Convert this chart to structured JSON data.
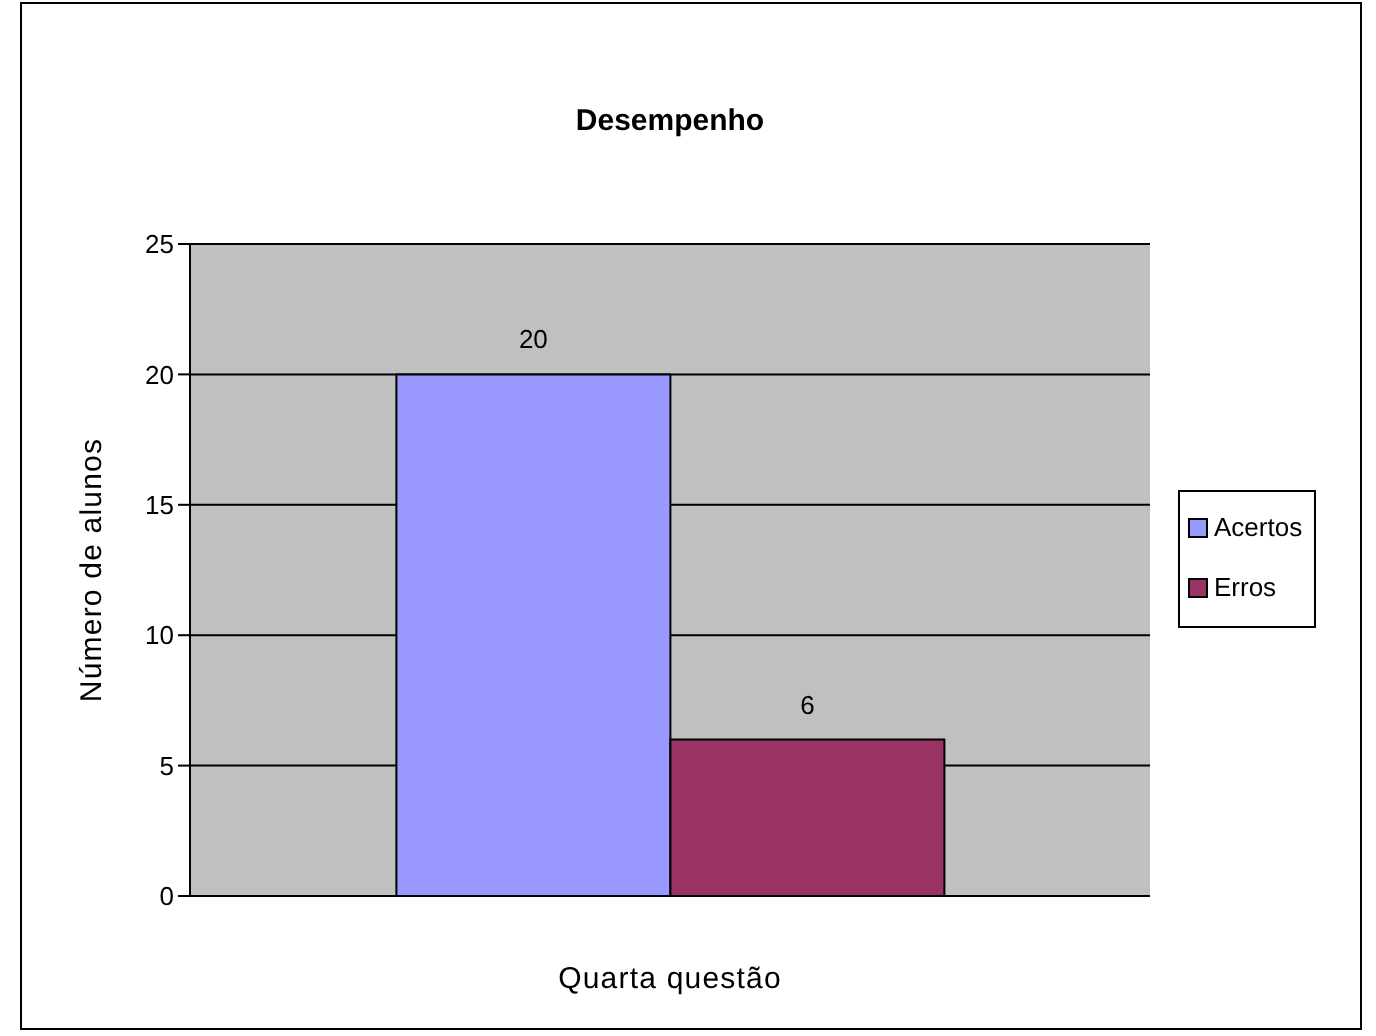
{
  "chart_data": {
    "type": "bar",
    "title": "Desempenho",
    "xlabel": "Quarta questão",
    "ylabel": "Número de alunos",
    "categories": [
      null
    ],
    "series": [
      {
        "name": "Acertos",
        "color": "#9999ff",
        "values": [
          20
        ]
      },
      {
        "name": "Erros",
        "color": "#993366",
        "values": [
          6
        ]
      }
    ],
    "ylim": [
      0,
      25
    ],
    "yticks": [
      0,
      5,
      10,
      15,
      20,
      25
    ],
    "grid": "y",
    "legend": "right",
    "data_labels": true
  }
}
